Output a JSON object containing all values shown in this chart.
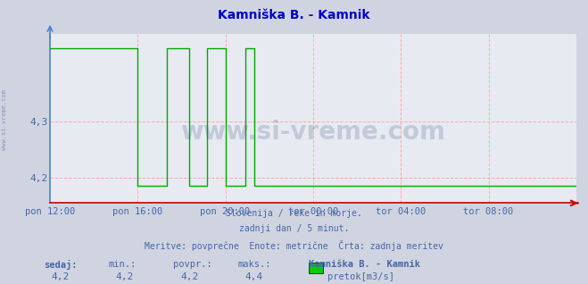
{
  "title": "Kamniška B. - Kamnik",
  "title_color": "#0000cc",
  "bg_color": "#d0d4e0",
  "plot_bg_color": "#e8eaf2",
  "grid_color": "#ffaaaa",
  "grid_color_v": "#aaaacc",
  "line_color": "#00aa00",
  "axis_color_x": "#cc0000",
  "axis_color_y": "#4488cc",
  "text_color": "#4466aa",
  "ylabel_ticks": [
    4.2,
    4.3
  ],
  "ylim": [
    4.155,
    4.455
  ],
  "xlim": [
    0,
    288
  ],
  "x_tick_positions": [
    0,
    48,
    96,
    144,
    192,
    240
  ],
  "x_tick_labels": [
    "pon 12:00",
    "pon 16:00",
    "pon 20:00",
    "tor 00:00",
    "tor 04:00",
    "tor 08:00"
  ],
  "footnote_lines": [
    "Slovenija / reke in morje.",
    "zadnji dan / 5 minut.",
    "Meritve: povprečne  Enote: metrične  Črta: zadnja meritev"
  ],
  "footer_labels": [
    "sedaj:",
    "min.:",
    "povpr.:",
    "maks.:"
  ],
  "footer_values": [
    "4,2",
    "4,2",
    "4,2",
    "4,4"
  ],
  "station_name": "Kamniška B. - Kamnik",
  "legend_label": "pretok[m3/s]",
  "legend_color": "#00cc00",
  "watermark": "www.si-vreme.com",
  "watermark_color": "#1a3a6a",
  "watermark_alpha": 0.18,
  "side_text": "www.si-vreme.com",
  "high_y": 4.43,
  "low_y": 4.185,
  "data_x": [
    0,
    0,
    4,
    4,
    48,
    48,
    52,
    52,
    64,
    64,
    68,
    68,
    76,
    76,
    80,
    80,
    86,
    86,
    90,
    90,
    96,
    96,
    100,
    100,
    107,
    107,
    112,
    112,
    116,
    116,
    288
  ],
  "data_y": [
    4.43,
    4.43,
    4.43,
    4.43,
    4.43,
    4.185,
    4.185,
    4.185,
    4.185,
    4.43,
    4.43,
    4.43,
    4.43,
    4.185,
    4.185,
    4.185,
    4.185,
    4.43,
    4.43,
    4.43,
    4.43,
    4.185,
    4.185,
    4.185,
    4.185,
    4.43,
    4.43,
    4.185,
    4.185,
    4.185,
    4.185
  ]
}
